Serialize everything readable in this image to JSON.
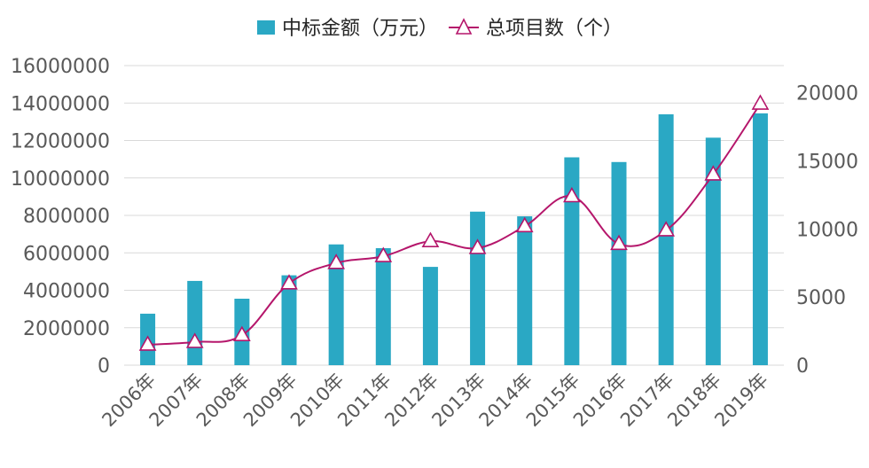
{
  "chart_data": {
    "type": "bar+line",
    "categories": [
      "2006年",
      "2007年",
      "2008年",
      "2009年",
      "2010年",
      "2011年",
      "2012年",
      "2013年",
      "2014年",
      "2015年",
      "2016年",
      "2017年",
      "2018年",
      "2019年"
    ],
    "series": [
      {
        "name": "中标金额（万元）",
        "type": "bar",
        "axis": "left",
        "color": "#2AA8C4",
        "values": [
          2750000,
          4500000,
          3550000,
          4800000,
          6450000,
          6250000,
          5250000,
          8200000,
          7950000,
          11100000,
          10850000,
          13400000,
          12150000,
          13450000
        ]
      },
      {
        "name": "总项目数（个）",
        "type": "line",
        "axis": "right",
        "color": "#B5166B",
        "marker": "triangle",
        "values": [
          1500,
          1700,
          2200,
          6000,
          7500,
          8000,
          9100,
          8600,
          10200,
          12400,
          8900,
          9900,
          14000,
          19200
        ]
      }
    ],
    "y_left": {
      "min": 0,
      "max": 16000000,
      "ticks": [
        "0",
        "2000000",
        "4000000",
        "6000000",
        "8000000",
        "10000000",
        "12000000",
        "14000000",
        "16000000"
      ]
    },
    "y_right": {
      "min": 0,
      "max": 22000,
      "ticks": [
        "0",
        "5000",
        "10000",
        "15000",
        "20000"
      ]
    },
    "grid": true,
    "legend_position": "top"
  }
}
